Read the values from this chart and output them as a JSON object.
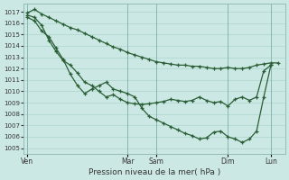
{
  "xlabel": "Pression niveau de la mer( hPa )",
  "background_color": "#cce8e4",
  "grid_color": "#aad4cc",
  "line_color": "#2a5e35",
  "ylim": [
    1004.5,
    1017.7
  ],
  "yticks": [
    1005,
    1006,
    1007,
    1008,
    1009,
    1010,
    1011,
    1012,
    1013,
    1014,
    1015,
    1016,
    1017
  ],
  "xtick_labels": [
    "Ven",
    "Mar",
    "Sam",
    "Dim",
    "Lun"
  ],
  "xtick_positions": [
    0,
    14,
    18,
    28,
    34
  ],
  "xlim": [
    -0.5,
    36
  ],
  "num_points": 36,
  "line1_x": [
    0,
    1,
    2,
    3,
    4,
    5,
    6,
    7,
    8,
    9,
    10,
    11,
    12,
    13,
    14,
    15,
    16,
    17,
    18,
    19,
    20,
    21,
    22,
    23,
    24,
    25,
    26,
    27,
    28,
    29,
    30,
    31,
    32,
    33,
    34,
    35
  ],
  "line1_y": [
    1016.9,
    1017.2,
    1016.8,
    1016.5,
    1016.2,
    1015.9,
    1015.6,
    1015.4,
    1015.1,
    1014.8,
    1014.5,
    1014.2,
    1013.9,
    1013.7,
    1013.4,
    1013.2,
    1013.0,
    1012.8,
    1012.6,
    1012.5,
    1012.4,
    1012.3,
    1012.3,
    1012.2,
    1012.2,
    1012.1,
    1012.0,
    1012.0,
    1012.1,
    1012.0,
    1012.0,
    1012.1,
    1012.3,
    1012.4,
    1012.5,
    1012.5
  ],
  "line2_x": [
    0,
    1,
    2,
    3,
    4,
    5,
    6,
    7,
    8,
    9,
    10,
    11,
    12,
    13,
    14,
    15,
    16,
    17,
    18,
    19,
    20,
    21,
    22,
    23,
    24,
    25,
    26,
    27,
    28,
    29,
    30,
    31,
    32,
    33,
    34
  ],
  "line2_y": [
    1016.7,
    1016.5,
    1015.8,
    1014.5,
    1013.5,
    1012.7,
    1012.3,
    1011.6,
    1010.8,
    1010.5,
    1010.0,
    1009.5,
    1009.7,
    1009.3,
    1009.0,
    1008.9,
    1008.85,
    1008.9,
    1009.0,
    1009.1,
    1009.3,
    1009.2,
    1009.1,
    1009.2,
    1009.5,
    1009.2,
    1009.0,
    1009.1,
    1008.7,
    1009.3,
    1009.5,
    1009.2,
    1009.5,
    1011.8,
    1012.3
  ],
  "line3_x": [
    0,
    1,
    2,
    3,
    4,
    5,
    6,
    7,
    8,
    9,
    10,
    11,
    12,
    13,
    14,
    15,
    16,
    17,
    18,
    19,
    20,
    21,
    22,
    23,
    24,
    25,
    26,
    27,
    28,
    29,
    30,
    31,
    32,
    33,
    34
  ],
  "line3_y": [
    1016.5,
    1016.2,
    1015.3,
    1014.8,
    1013.8,
    1012.8,
    1011.5,
    1010.5,
    1009.8,
    1010.2,
    1010.5,
    1010.8,
    1010.2,
    1010.0,
    1009.8,
    1009.5,
    1008.5,
    1007.8,
    1007.5,
    1007.2,
    1006.9,
    1006.6,
    1006.3,
    1006.1,
    1005.8,
    1005.9,
    1006.4,
    1006.5,
    1006.0,
    1005.8,
    1005.5,
    1005.8,
    1006.5,
    1009.5,
    1012.3
  ]
}
